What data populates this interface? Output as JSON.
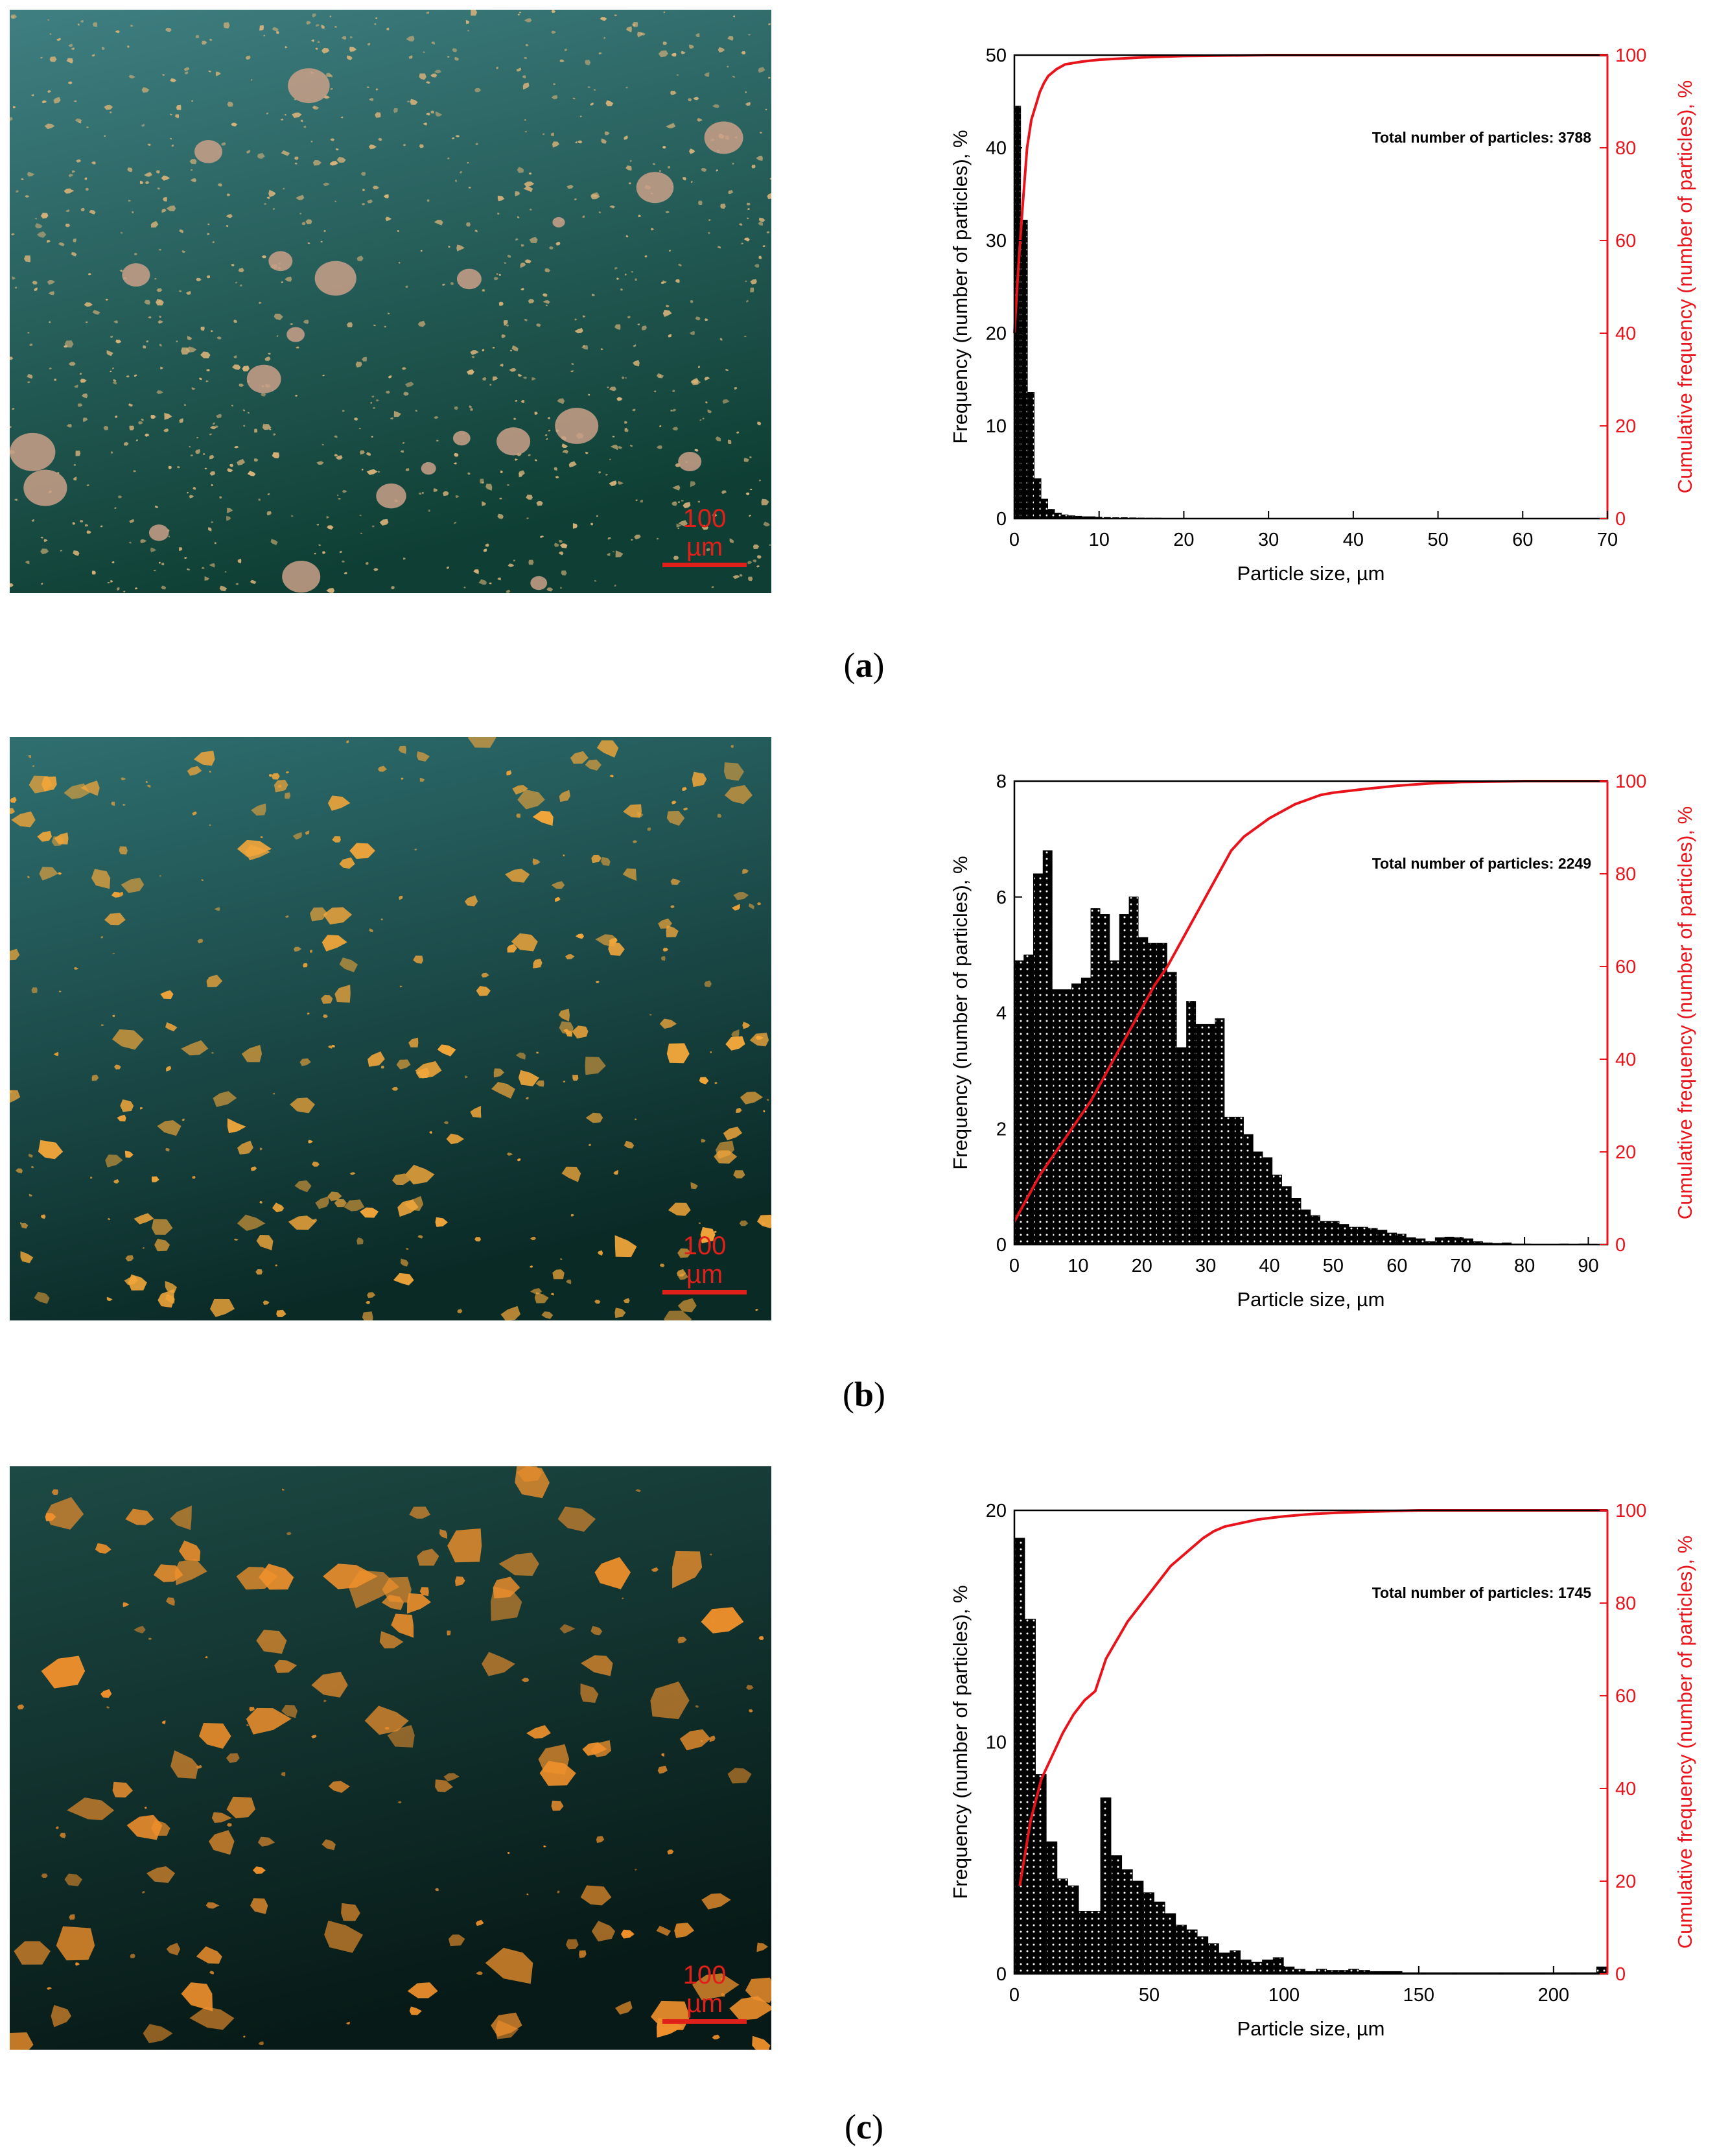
{
  "panels": [
    {
      "label": "a",
      "scale_bar": "100 µm",
      "micrograph_palette": {
        "bg_top": "#3f7f82",
        "bg_bottom": "#0f3f34",
        "particle": "#d6b27a"
      },
      "chart_data": {
        "type": "bar",
        "xlabel": "Particle size, µm",
        "ylabel": "Frequency (number of particles), %",
        "ylabel_right": "Cumulative frequency (number of particles), %",
        "xlim": [
          0,
          70
        ],
        "xticks": [
          0,
          10,
          20,
          30,
          40,
          50,
          60,
          70
        ],
        "ylim": [
          0,
          50
        ],
        "yticks": [
          0,
          10,
          20,
          30,
          40,
          50
        ],
        "ylim_right": [
          0,
          100
        ],
        "yticks_right": [
          0,
          20,
          40,
          60,
          80,
          100
        ],
        "annotation": "Total number of particles: 3788",
        "bin_width": 0.8,
        "bins_x": [
          0.4,
          1.2,
          2.0,
          2.8,
          3.6,
          4.4,
          5.2,
          6.0,
          6.8,
          7.6,
          8.4,
          9.2,
          10.0,
          11.0,
          12.0,
          13.0,
          14.0,
          15.0,
          16.0,
          17.0
        ],
        "values": [
          44.5,
          32.2,
          13.6,
          4.3,
          2.1,
          1.0,
          0.6,
          0.4,
          0.3,
          0.25,
          0.2,
          0.2,
          0.15,
          0.12,
          0.1,
          0.1,
          0.08,
          0.06,
          0.05,
          0.05
        ],
        "cumulative": {
          "x": [
            0,
            0.5,
            1.0,
            1.5,
            2.0,
            2.5,
            3.0,
            3.5,
            4.0,
            5.0,
            6.0,
            8.0,
            10.0,
            15.0,
            20.0,
            30.0,
            70.0
          ],
          "y": [
            40,
            55,
            68,
            80,
            86,
            89,
            92,
            94,
            95.5,
            97,
            98,
            98.6,
            99,
            99.5,
            99.8,
            100,
            100
          ]
        }
      }
    },
    {
      "label": "b",
      "scale_bar": "100 µm",
      "micrograph_palette": {
        "bg_top": "#2f6f70",
        "bg_bottom": "#0a2a26",
        "particle": "#f2a63a"
      },
      "chart_data": {
        "type": "bar",
        "xlabel": "Particle size, µm",
        "ylabel": "Frequency (number of particles), %",
        "ylabel_right": "Cumulative frequency (number of particles), %",
        "xlim": [
          0,
          93
        ],
        "xticks": [
          0,
          10,
          20,
          30,
          40,
          50,
          60,
          70,
          80,
          90
        ],
        "ylim": [
          0,
          8
        ],
        "yticks": [
          0,
          2,
          4,
          6,
          8
        ],
        "ylim_right": [
          0,
          100
        ],
        "yticks_right": [
          0,
          20,
          40,
          60,
          80,
          100
        ],
        "annotation": "Total number of particles: 2249",
        "bin_width": 1.5,
        "bins_x": [
          0.75,
          2.25,
          3.75,
          5.25,
          6.75,
          8.25,
          9.75,
          11.25,
          12.75,
          14.25,
          15.75,
          17.25,
          18.75,
          20.25,
          21.75,
          23.25,
          24.75,
          26.25,
          27.75,
          29.25,
          30.75,
          32.25,
          33.75,
          35.25,
          36.75,
          38.25,
          39.75,
          41.25,
          42.75,
          44.25,
          45.75,
          47.25,
          48.75,
          50.25,
          51.75,
          53.25,
          54.75,
          56.25,
          57.75,
          59.25,
          60.75,
          62.25,
          63.75,
          65.25,
          66.75,
          68.25,
          69.75,
          71.25,
          72.75,
          74.25,
          75.75,
          77.25,
          78.75,
          80.25,
          81.75,
          83.25,
          84.75,
          86.25,
          87.75,
          89.25,
          90.75
        ],
        "values": [
          4.9,
          5.0,
          6.4,
          6.8,
          4.4,
          4.4,
          4.5,
          4.6,
          5.8,
          5.7,
          4.9,
          5.7,
          6.0,
          5.3,
          5.2,
          5.2,
          4.7,
          3.4,
          4.2,
          3.8,
          3.8,
          3.9,
          2.2,
          2.2,
          1.9,
          1.6,
          1.5,
          1.2,
          1.0,
          0.8,
          0.6,
          0.5,
          0.4,
          0.4,
          0.35,
          0.3,
          0.3,
          0.28,
          0.25,
          0.2,
          0.18,
          0.12,
          0.1,
          0.05,
          0.12,
          0.13,
          0.12,
          0.1,
          0.05,
          0.03,
          0.02,
          0.03,
          0.01,
          0.01,
          0.0,
          0.0,
          0.0,
          0.01,
          0.0,
          0.01,
          0.0
        ],
        "cumulative": {
          "x": [
            0,
            2,
            4,
            6,
            8,
            10,
            12,
            14,
            16,
            18,
            20,
            22,
            24,
            26,
            28,
            30,
            32,
            34,
            36,
            38,
            40,
            42,
            44,
            46,
            48,
            50,
            55,
            60,
            65,
            70,
            80,
            93
          ],
          "y": [
            5,
            10,
            15,
            19,
            23,
            27,
            31,
            36,
            41,
            46,
            51,
            56,
            60,
            65,
            70,
            75,
            80,
            85,
            88,
            90,
            92,
            93.5,
            95,
            96,
            97,
            97.5,
            98.3,
            99,
            99.5,
            99.8,
            100,
            100
          ]
        }
      }
    },
    {
      "label": "c",
      "scale_bar": "100 µm",
      "micrograph_palette": {
        "bg_top": "#1d4a45",
        "bg_bottom": "#071a17",
        "particle": "#f0902c"
      },
      "chart_data": {
        "type": "bar",
        "xlabel": "Particle size, µm",
        "ylabel": "Frequency (number of particles), %",
        "ylabel_right": "Cumulative frequency (number of particles), %",
        "xlim": [
          0,
          220
        ],
        "xticks": [
          0,
          50,
          100,
          150,
          200
        ],
        "ylim": [
          0,
          20
        ],
        "yticks": [
          0,
          10,
          20
        ],
        "ylim_right": [
          0,
          100
        ],
        "yticks_right": [
          0,
          20,
          40,
          60,
          80,
          100
        ],
        "annotation": "Total number of particles: 1745",
        "bin_width": 4.0,
        "bins_x": [
          2,
          6,
          10,
          14,
          18,
          22,
          26,
          30,
          34,
          38,
          42,
          46,
          50,
          54,
          58,
          62,
          66,
          70,
          74,
          78,
          82,
          86,
          90,
          94,
          98,
          102,
          106,
          110,
          114,
          118,
          122,
          126,
          130,
          134,
          138,
          142,
          146,
          150,
          154,
          158,
          162,
          166,
          170,
          174,
          178,
          182,
          186,
          190,
          194,
          198,
          202,
          206,
          210,
          214,
          218
        ],
        "values": [
          18.8,
          15.3,
          8.6,
          5.7,
          4.1,
          3.8,
          2.7,
          2.7,
          7.6,
          5.1,
          4.5,
          4.0,
          3.5,
          3.1,
          2.6,
          2.1,
          1.9,
          1.6,
          1.3,
          0.9,
          1.0,
          0.6,
          0.5,
          0.6,
          0.7,
          0.3,
          0.2,
          0.1,
          0.2,
          0.15,
          0.15,
          0.2,
          0.15,
          0.1,
          0.1,
          0.1,
          0.05,
          0.05,
          0.05,
          0.05,
          0.05,
          0.05,
          0.05,
          0.05,
          0.05,
          0.05,
          0.05,
          0.05,
          0.05,
          0.05,
          0.05,
          0.05,
          0.05,
          0.05,
          0.3
        ],
        "cumulative": {
          "x": [
            2,
            6,
            10,
            14,
            18,
            22,
            26,
            30,
            34,
            38,
            42,
            46,
            50,
            54,
            58,
            62,
            66,
            70,
            74,
            78,
            82,
            86,
            90,
            94,
            100,
            110,
            120,
            130,
            150,
            220
          ],
          "y": [
            19,
            33,
            42,
            47,
            52,
            56,
            59,
            61,
            68,
            72,
            76,
            79,
            82,
            85,
            88,
            90,
            92,
            94,
            95.5,
            96.5,
            97,
            97.5,
            98,
            98.3,
            98.7,
            99.2,
            99.5,
            99.7,
            100,
            100
          ]
        }
      }
    }
  ]
}
